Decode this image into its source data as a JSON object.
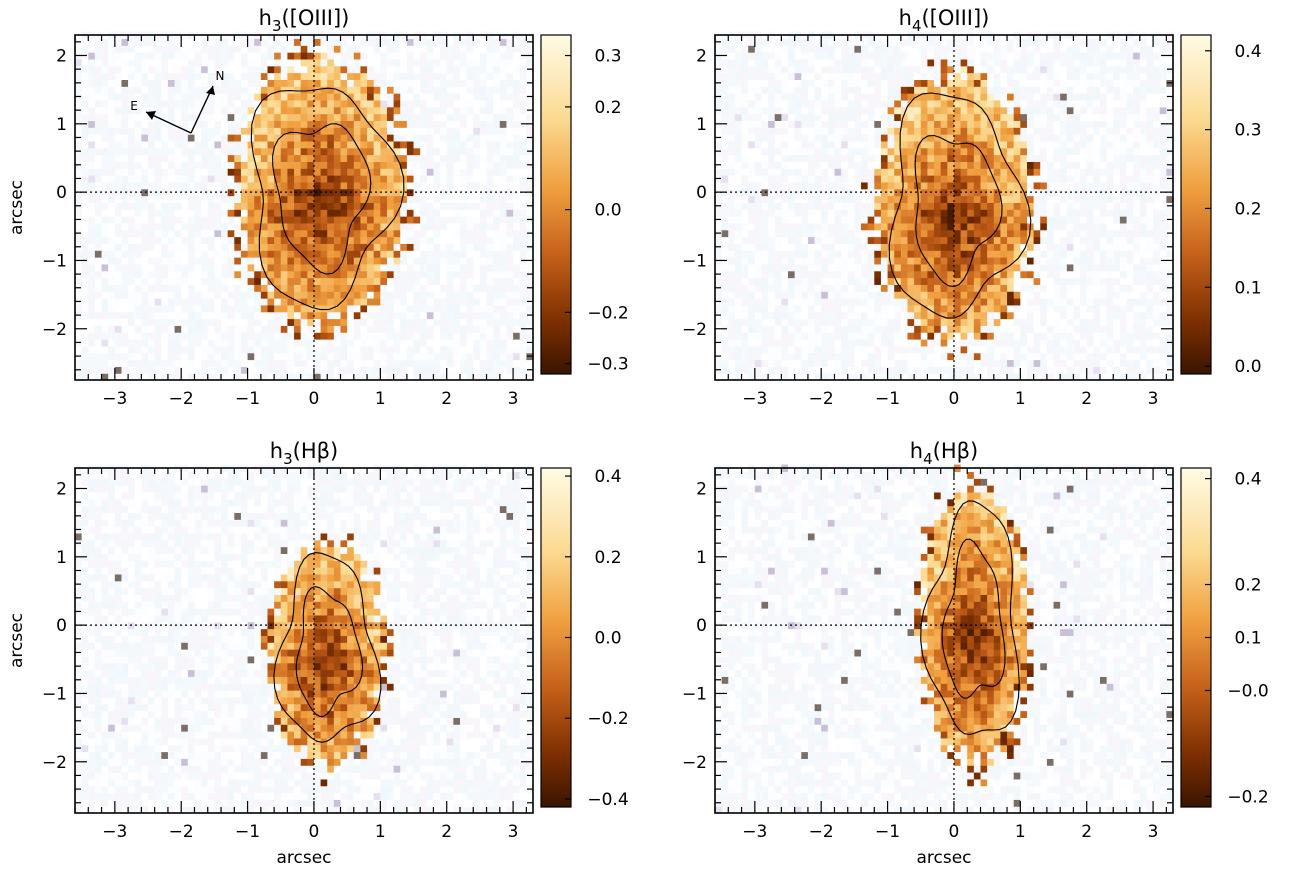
{
  "chart_data": [
    {
      "type": "heatmap",
      "title": "h3([OIII])",
      "title_base": "h",
      "title_sub": "3",
      "title_rest": "([OIII])",
      "xlabel": "",
      "ylabel": "arcsec",
      "xlim": [
        -3.6,
        3.3
      ],
      "ylim": [
        -2.75,
        2.3
      ],
      "xticks": [
        -3,
        -2,
        -1,
        0,
        1,
        2,
        3
      ],
      "yticks": [
        -2,
        -1,
        0,
        1,
        2
      ],
      "colorbar": {
        "range": [
          -0.32,
          0.34
        ],
        "ticks": [
          -0.3,
          -0.2,
          0.0,
          0.2,
          0.3
        ],
        "tick_labels": [
          "−0.3",
          "−0.2",
          "0.0",
          "0.2",
          "0.3"
        ]
      },
      "blob": {
        "center": [
          0.1,
          0.0
        ],
        "radii": [
          1.25,
          1.9
        ],
        "seed": 3
      },
      "compass": {
        "north_label": "N",
        "east_label": "E"
      }
    },
    {
      "type": "heatmap",
      "title": "h4([OIII])",
      "title_base": "h",
      "title_sub": "4",
      "title_rest": "([OIII])",
      "xlabel": "",
      "ylabel": "",
      "xlim": [
        -3.6,
        3.3
      ],
      "ylim": [
        -2.75,
        2.3
      ],
      "xticks": [
        -3,
        -2,
        -1,
        0,
        1,
        2,
        3
      ],
      "yticks": [
        -2,
        -1,
        0,
        1,
        2
      ],
      "colorbar": {
        "range": [
          -0.01,
          0.42
        ],
        "ticks": [
          0.0,
          0.1,
          0.2,
          0.3,
          0.4
        ],
        "tick_labels": [
          "0.0",
          "0.1",
          "0.2",
          "0.3",
          "0.4"
        ]
      },
      "blob": {
        "center": [
          0.0,
          -0.2
        ],
        "radii": [
          1.15,
          1.9
        ],
        "seed": 7
      }
    },
    {
      "type": "heatmap",
      "title": "h3(Hβ)",
      "title_base": "h",
      "title_sub": "3",
      "title_rest": "(Hβ)",
      "xlabel": "arcsec",
      "ylabel": "arcsec",
      "xlim": [
        -3.6,
        3.3
      ],
      "ylim": [
        -2.75,
        2.3
      ],
      "xticks": [
        -3,
        -2,
        -1,
        0,
        1,
        2,
        3
      ],
      "yticks": [
        -2,
        -1,
        0,
        1,
        2
      ],
      "colorbar": {
        "range": [
          -0.42,
          0.42
        ],
        "ticks": [
          -0.4,
          -0.2,
          0.0,
          0.2,
          0.4
        ],
        "tick_labels": [
          "−0.4",
          "−0.2",
          "0.0",
          "0.2",
          "0.4"
        ]
      },
      "blob": {
        "center": [
          0.2,
          -0.4
        ],
        "radii": [
          0.85,
          1.6
        ],
        "seed": 11
      }
    },
    {
      "type": "heatmap",
      "title": "h4(Hβ)",
      "title_base": "h",
      "title_sub": "4",
      "title_rest": "(Hβ)",
      "xlabel": "arcsec",
      "ylabel": "",
      "xlim": [
        -3.6,
        3.3
      ],
      "ylim": [
        -2.75,
        2.3
      ],
      "xticks": [
        -3,
        -2,
        -1,
        0,
        1,
        2,
        3
      ],
      "yticks": [
        -2,
        -1,
        0,
        1,
        2
      ],
      "colorbar": {
        "range": [
          -0.22,
          0.42
        ],
        "ticks": [
          -0.2,
          -0.0,
          0.1,
          0.2,
          0.4
        ],
        "tick_labels": [
          "−0.2",
          "−0.0",
          "0.1",
          "0.2",
          "0.4"
        ]
      },
      "blob": {
        "center": [
          0.3,
          0.0
        ],
        "radii": [
          0.8,
          2.0
        ],
        "seed": 19
      }
    }
  ]
}
